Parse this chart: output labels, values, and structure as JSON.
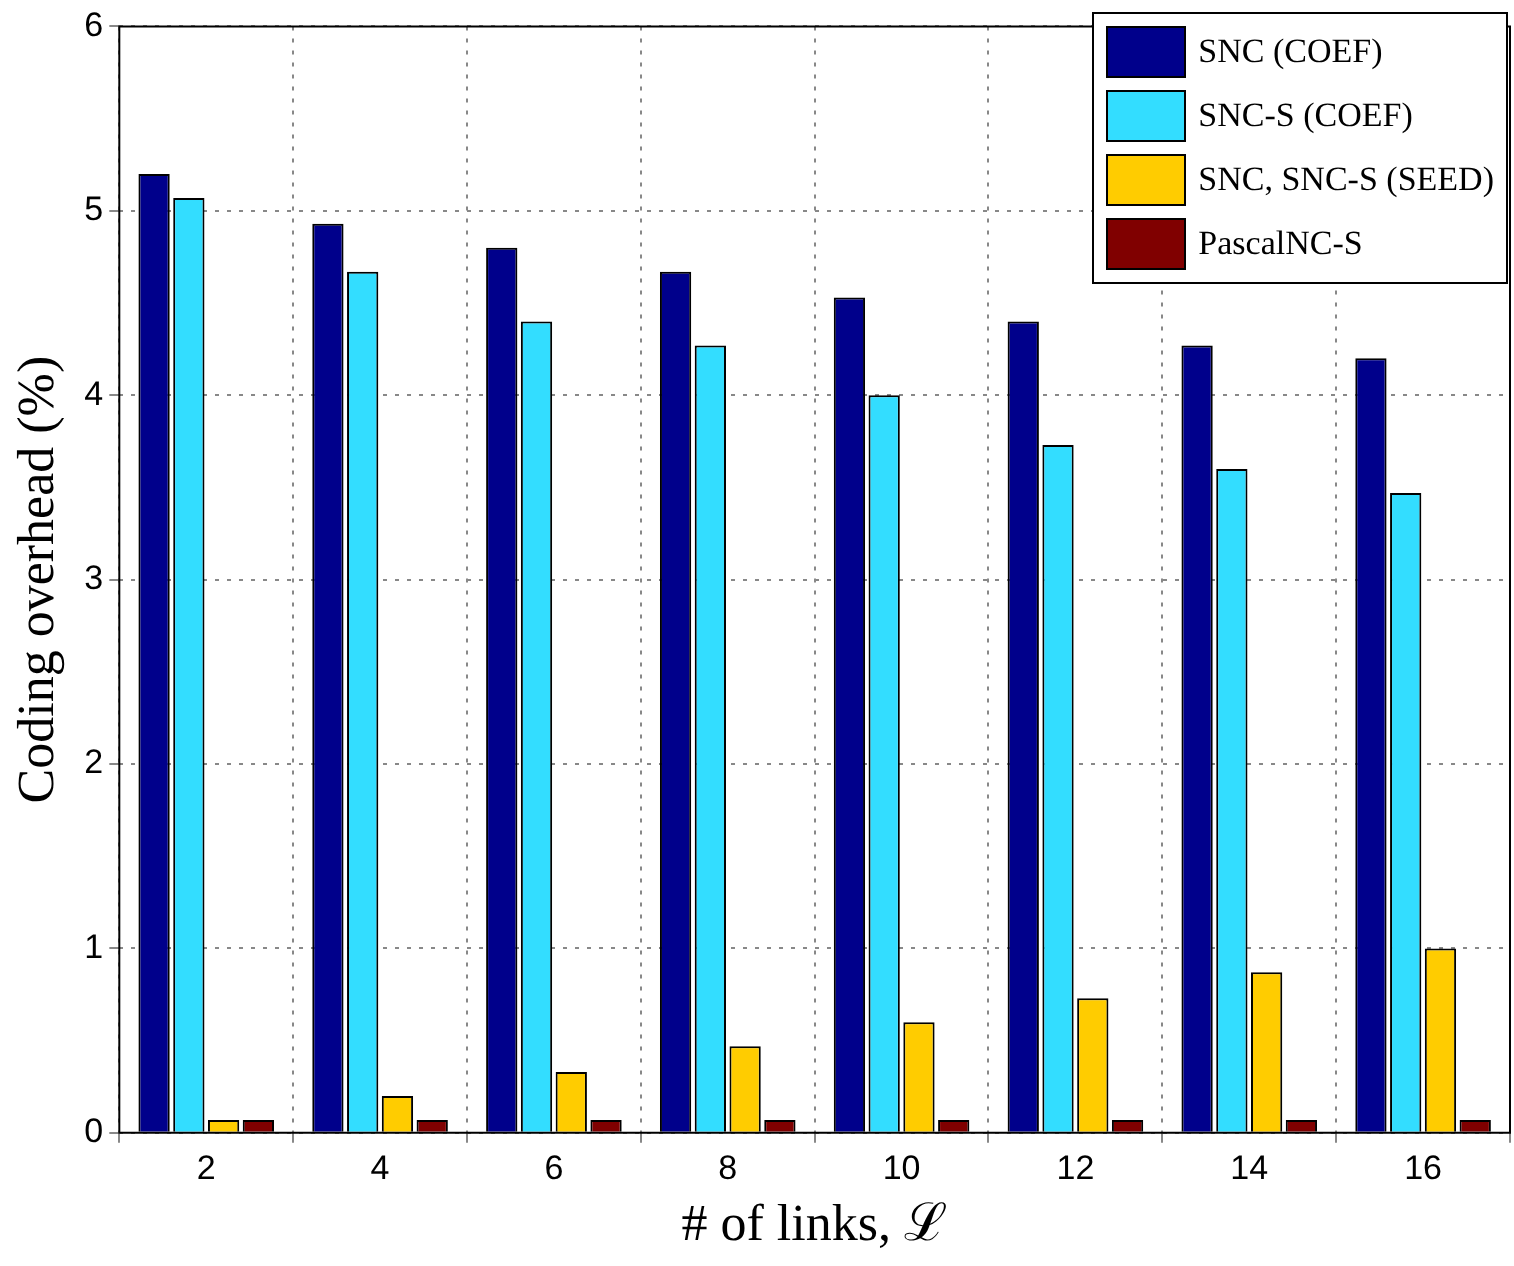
{
  "chart_data": {
    "type": "bar",
    "xlabel": "# of links, ℒ",
    "ylabel": "Coding overhead (%)",
    "categories": [
      "2",
      "4",
      "6",
      "8",
      "10",
      "12",
      "14",
      "16"
    ],
    "series": [
      {
        "name": "SNC (COEF)",
        "color": "#00008b",
        "values": [
          5.2,
          4.93,
          4.8,
          4.67,
          4.53,
          4.4,
          4.27,
          4.2
        ]
      },
      {
        "name": "SNC-S (COEF)",
        "color": "#33ddff",
        "values": [
          5.07,
          4.67,
          4.4,
          4.27,
          4.0,
          3.73,
          3.6,
          3.47
        ]
      },
      {
        "name": "SNC, SNC-S (SEED)",
        "color": "#ffcc00",
        "values": [
          0.07,
          0.2,
          0.33,
          0.47,
          0.6,
          0.73,
          0.87,
          1.0
        ]
      },
      {
        "name": "PascalNC-S",
        "color": "#800000",
        "values": [
          0.07,
          0.07,
          0.07,
          0.07,
          0.07,
          0.07,
          0.07,
          0.07
        ]
      }
    ],
    "ylim": [
      0,
      6
    ],
    "yticks": [
      0,
      1,
      2,
      3,
      4,
      5,
      6
    ],
    "grid": true,
    "legend": "top right"
  }
}
